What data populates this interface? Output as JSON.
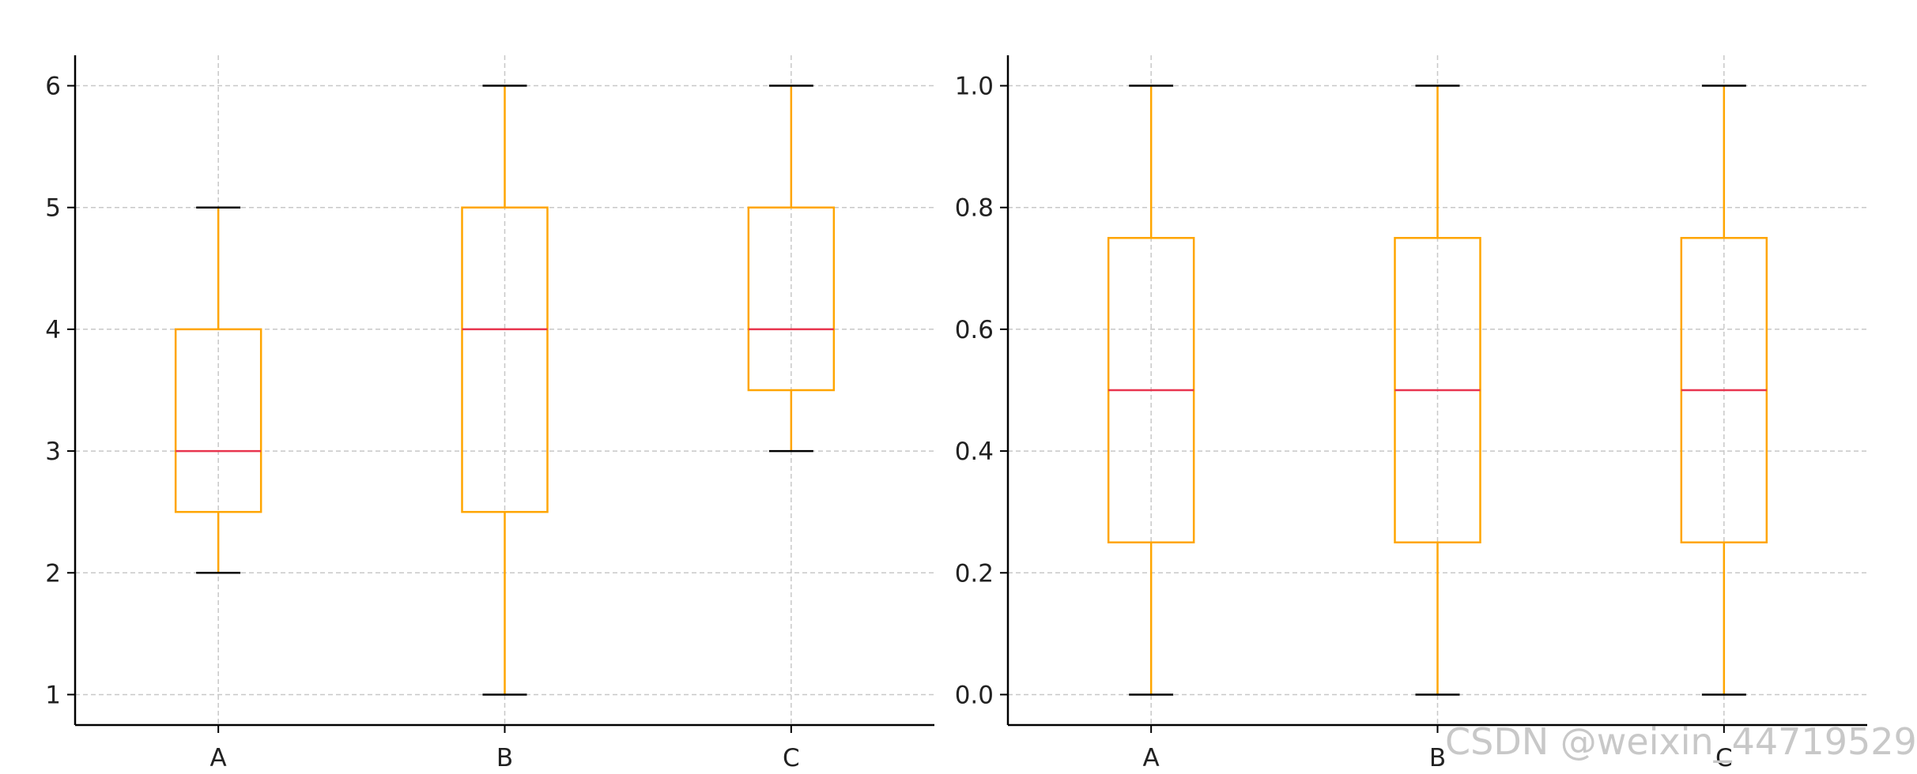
{
  "chart_data": [
    {
      "type": "box",
      "title": "",
      "xlabel": "",
      "ylabel": "",
      "categories": [
        "A",
        "B",
        "C"
      ],
      "boxes": [
        {
          "category": "A",
          "whisker_low": 2,
          "q1": 2.5,
          "median": 3,
          "q3": 4,
          "whisker_high": 5
        },
        {
          "category": "B",
          "whisker_low": 1,
          "q1": 2.5,
          "median": 4,
          "q3": 5,
          "whisker_high": 6
        },
        {
          "category": "C",
          "whisker_low": 3,
          "q1": 3.5,
          "median": 4,
          "q3": 5,
          "whisker_high": 6
        }
      ],
      "ylim": [
        0.75,
        6.25
      ],
      "yticks": [
        1,
        2,
        3,
        4,
        5,
        6
      ],
      "ytick_labels": [
        "1",
        "2",
        "3",
        "4",
        "5",
        "6"
      ],
      "grid": true
    },
    {
      "type": "box",
      "title": "",
      "xlabel": "",
      "ylabel": "",
      "categories": [
        "A",
        "B",
        "C"
      ],
      "boxes": [
        {
          "category": "A",
          "whisker_low": 0.0,
          "q1": 0.25,
          "median": 0.5,
          "q3": 0.75,
          "whisker_high": 1.0
        },
        {
          "category": "B",
          "whisker_low": 0.0,
          "q1": 0.25,
          "median": 0.5,
          "q3": 0.75,
          "whisker_high": 1.0
        },
        {
          "category": "C",
          "whisker_low": 0.0,
          "q1": 0.25,
          "median": 0.5,
          "q3": 0.75,
          "whisker_high": 1.0
        }
      ],
      "ylim": [
        -0.05,
        1.05
      ],
      "yticks": [
        0.0,
        0.2,
        0.4,
        0.6,
        0.8,
        1.0
      ],
      "ytick_labels": [
        "0.0",
        "0.2",
        "0.4",
        "0.6",
        "0.8",
        "1.0"
      ],
      "grid": true
    }
  ],
  "colors": {
    "box": "#FFA500",
    "median": "#E8344E",
    "caps": "#000000",
    "grid": "#c8c8c8",
    "axis": "#000000"
  },
  "watermark": "CSDN @weixin_44719529"
}
